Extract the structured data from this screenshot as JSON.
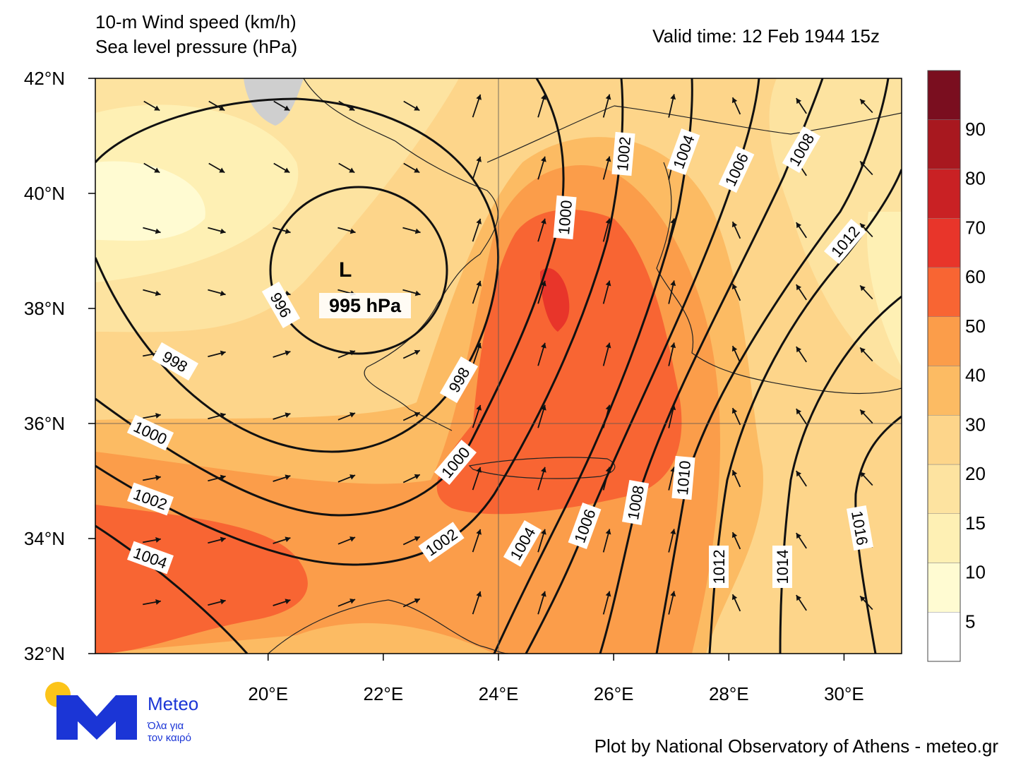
{
  "header": {
    "title_lines": [
      "10-m Wind speed (km/h)",
      "Sea level pressure (hPa)"
    ],
    "valid_time": "Valid time: 12 Feb 1944 15z"
  },
  "map": {
    "xlim": [
      17,
      31
    ],
    "ylim": [
      32,
      42
    ],
    "xticks": [
      {
        "value": 20,
        "label": "20°E"
      },
      {
        "value": 22,
        "label": "22°E"
      },
      {
        "value": 24,
        "label": "24°E"
      },
      {
        "value": 26,
        "label": "26°E"
      },
      {
        "value": 28,
        "label": "28°E"
      },
      {
        "value": 30,
        "label": "30°E"
      }
    ],
    "yticks": [
      {
        "value": 32,
        "label": "32°N"
      },
      {
        "value": 34,
        "label": "34°N"
      },
      {
        "value": 36,
        "label": "36°N"
      },
      {
        "value": 38,
        "label": "38°N"
      },
      {
        "value": 40,
        "label": "40°N"
      },
      {
        "value": 42,
        "label": "42°N"
      }
    ],
    "grid_lon": 24,
    "grid_lat": 36,
    "low_marker": "L",
    "low_label": "995 hPa",
    "isobar_labels": [
      996,
      998,
      998,
      1000,
      1000,
      1002,
      1002,
      1004,
      1004,
      1006,
      1008,
      1010,
      1012,
      1014,
      1016,
      1000,
      1002,
      1004,
      1006,
      1008,
      1012
    ]
  },
  "colorbar": {
    "levels": [
      5,
      10,
      15,
      20,
      30,
      40,
      50,
      60,
      70,
      80,
      90
    ],
    "colors": [
      "#ffffff",
      "#fffbd2",
      "#fef0b4",
      "#fde3a0",
      "#fdd58a",
      "#fcbb63",
      "#fb9d4a",
      "#f86533",
      "#e8352a",
      "#c92124",
      "#a8181f",
      "#7a0e1f"
    ]
  },
  "logo": {
    "name": "Meteo",
    "tagline": [
      "Όλα για",
      "τον καιρό"
    ]
  },
  "footer": "Plot by National Observatory of Athens - meteo.gr"
}
